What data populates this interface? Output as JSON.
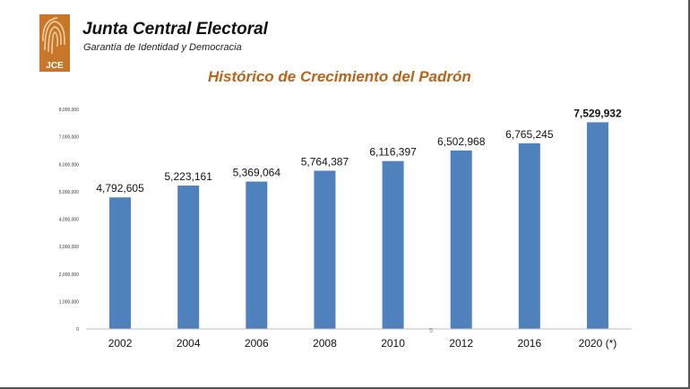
{
  "header": {
    "logo_text": "JCE",
    "org_name": "Junta Central Electoral",
    "tagline": "Garantía de Identidad y Democracia"
  },
  "colors": {
    "bar": "#4f81bd",
    "title": "#b5651d",
    "logo": "#c8772a"
  },
  "page_marker": "5",
  "chart_data": {
    "type": "bar",
    "title": "Histórico de Crecimiento del Padrón",
    "xlabel": "",
    "ylabel": "",
    "categories": [
      "2002",
      "2004",
      "2006",
      "2008",
      "2010",
      "2012",
      "2016",
      "2020 (*)"
    ],
    "values": [
      4792605,
      5223161,
      5369064,
      5764387,
      6116397,
      6502968,
      6765245,
      7529932
    ],
    "data_labels": [
      "4,792,605",
      "5,223,161",
      "5,369,064",
      "5,764,387",
      "6,116,397",
      "6,502,968",
      "6,765,245",
      "7,529,932"
    ],
    "highlight_index": 7,
    "ylim": [
      0,
      8000000
    ],
    "yticks": [
      0,
      1000000,
      2000000,
      3000000,
      4000000,
      5000000,
      6000000,
      7000000,
      8000000
    ],
    "ytick_labels": [
      "0",
      "1,000,000",
      "2,000,000",
      "3,000,000",
      "4,000,000",
      "5,000,000",
      "6,000,000",
      "7,000,000",
      "8,000,000"
    ],
    "grid": false,
    "legend": "none"
  }
}
